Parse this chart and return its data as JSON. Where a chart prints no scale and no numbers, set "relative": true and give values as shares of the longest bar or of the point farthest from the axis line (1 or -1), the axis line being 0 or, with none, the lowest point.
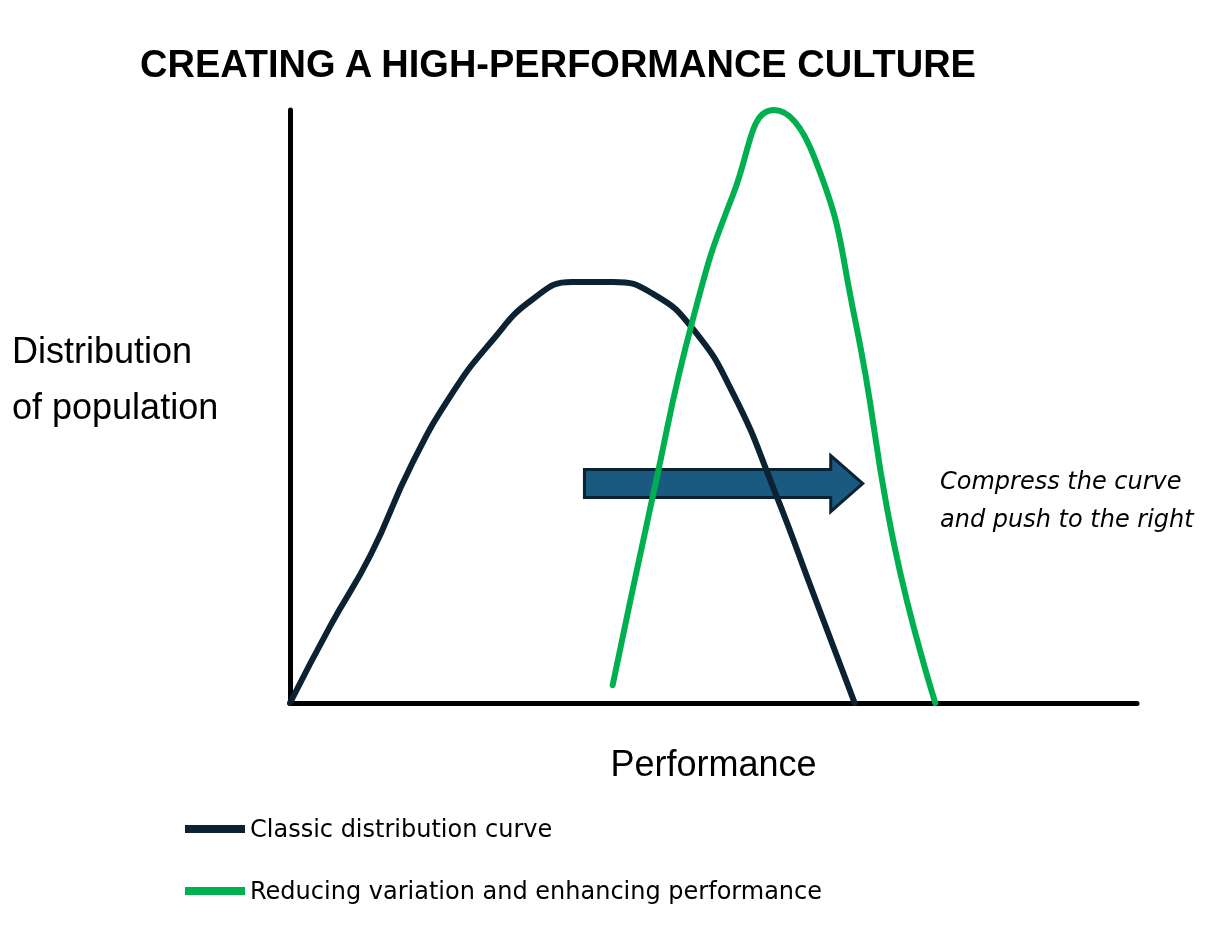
{
  "chart_data": {
    "type": "line",
    "title": "CREATING A HIGH-PERFORMANCE CULTURE",
    "xlabel": "Performance",
    "ylabel": "Distribution of population",
    "relative": true,
    "grid": false,
    "legend": "bottom",
    "marker": "none",
    "line_style": "solid",
    "annotations": [
      "Compress the curve and push to the right"
    ],
    "categories": [
      null,
      null,
      null,
      null,
      null,
      null,
      null,
      null,
      null,
      null,
      null,
      null,
      null,
      null,
      null,
      null,
      null,
      null,
      null,
      null,
      null,
      null
    ],
    "series": [
      {
        "name": "Classic distribution curve",
        "color": "#0b2233",
        "values": [
          0,
          0.13,
          0.25,
          0.4,
          0.52,
          0.61,
          0.68,
          0.71,
          0.71,
          0.69,
          0.63,
          0.52,
          0.36,
          0.18,
          0,
          null,
          null,
          null,
          null,
          null,
          null,
          null
        ]
      },
      {
        "name": "Reducing variation and enhancing performance",
        "color": "#00b050",
        "values": [
          null,
          null,
          null,
          null,
          null,
          null,
          null,
          null,
          0.03,
          0.35,
          0.65,
          0.86,
          1,
          0.92,
          0.65,
          0.26,
          0,
          null,
          null,
          null,
          null,
          null
        ]
      }
    ]
  }
}
